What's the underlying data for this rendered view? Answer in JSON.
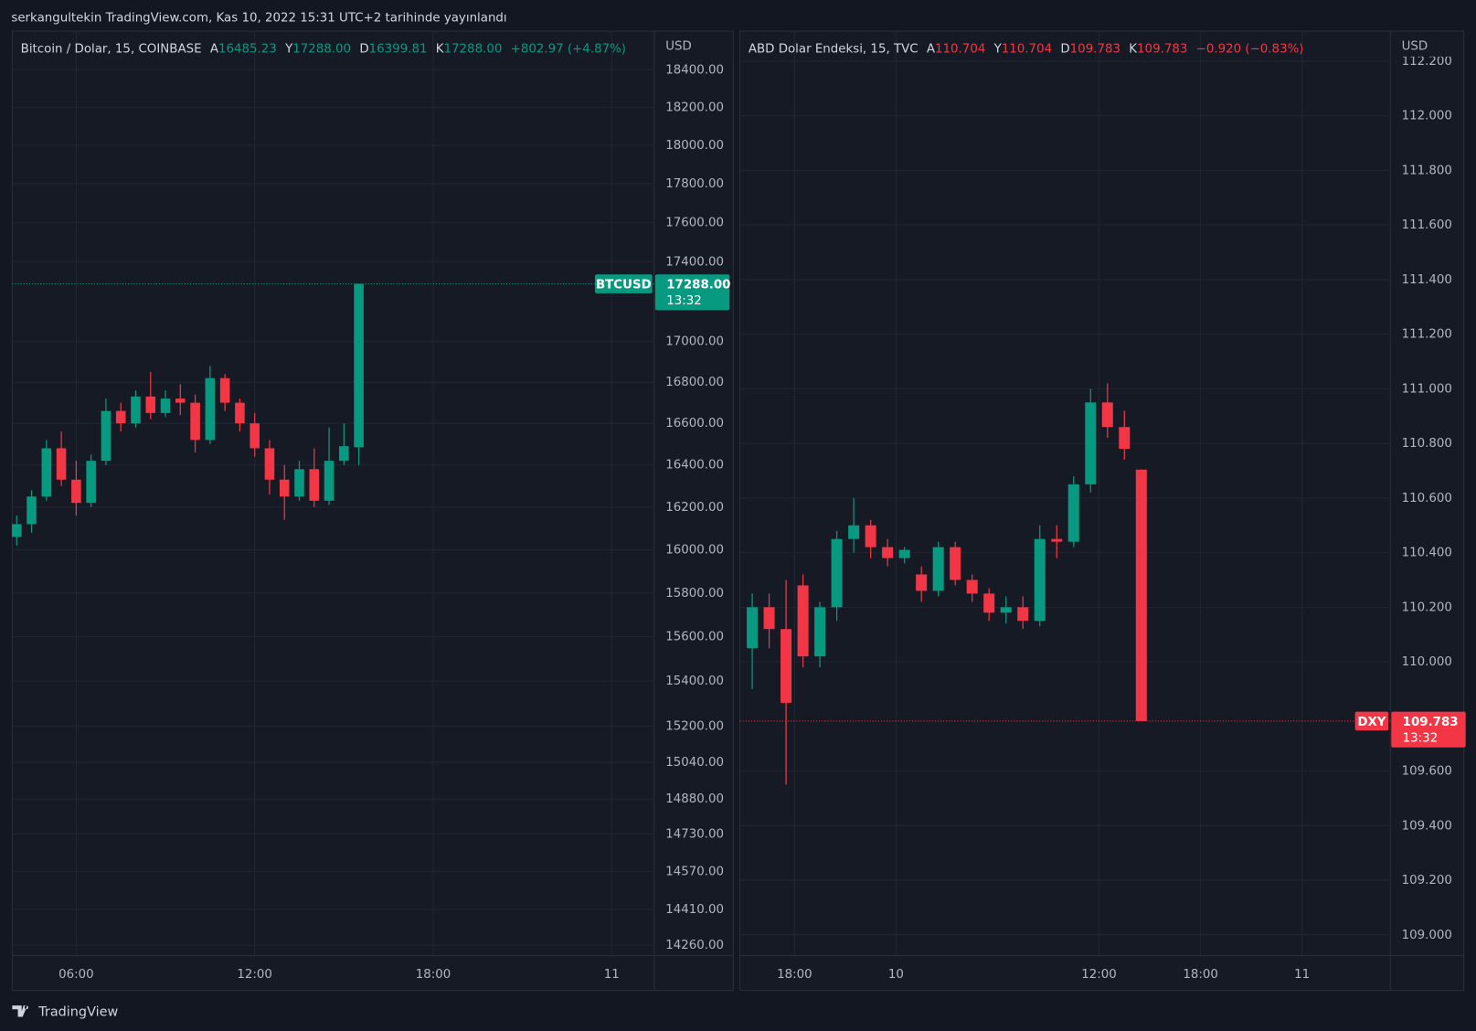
{
  "header": "serkangultekin TradingView.com, Kas 10, 2022 15:31 UTC+2 tarihinde yayınlandı",
  "brand": "TradingView",
  "chart_data": [
    {
      "type": "candlestick",
      "legend": {
        "name": "Bitcoin / Dolar, 15, COINBASE",
        "fields": [
          [
            "A",
            "16485.23"
          ],
          [
            "Y",
            "17288.00"
          ],
          [
            "D",
            "16399.81"
          ],
          [
            "K",
            "17288.00"
          ]
        ],
        "change": "+802.97 (+4.87%)"
      },
      "axis_unit": "USD",
      "symbol": "BTCUSD",
      "countdown": "13:32",
      "last_price": {
        "value": 17288,
        "label": "17288.00"
      },
      "up_color": "#089981",
      "down_color": "#f23645",
      "grid": true,
      "log_scale": true,
      "x": [
        4.0,
        4.5,
        5.0,
        5.5,
        6.0,
        6.5,
        7.0,
        7.5,
        8.0,
        8.5,
        9.0,
        9.5,
        10.0,
        10.5,
        11.0,
        11.5,
        12.0,
        12.5,
        13.0,
        13.5,
        14.0,
        14.5,
        15.0,
        15.5
      ],
      "open": [
        16060,
        16120,
        16250,
        16480,
        16330,
        16220,
        16420,
        16660,
        16600,
        16730,
        16650,
        16720,
        16700,
        16520,
        16820,
        16700,
        16600,
        16480,
        16330,
        16250,
        16380,
        16230,
        16420,
        16485.23
      ],
      "high": [
        16160,
        16280,
        16520,
        16560,
        16420,
        16450,
        16720,
        16700,
        16760,
        16850,
        16760,
        16790,
        16740,
        16880,
        16840,
        16720,
        16650,
        16520,
        16400,
        16420,
        16480,
        16580,
        16600,
        17288
      ],
      "low": [
        16020,
        16080,
        16230,
        16300,
        16160,
        16200,
        16400,
        16560,
        16580,
        16620,
        16630,
        16640,
        16460,
        16500,
        16660,
        16560,
        16440,
        16260,
        16140,
        16230,
        16200,
        16210,
        16400,
        16399.81
      ],
      "close": [
        16120,
        16250,
        16480,
        16330,
        16220,
        16420,
        16660,
        16600,
        16730,
        16650,
        16720,
        16700,
        16520,
        16820,
        16700,
        16600,
        16480,
        16330,
        16250,
        16380,
        16230,
        16420,
        16490,
        17288
      ],
      "xlim": [
        3.85,
        25.43
      ],
      "xticks": [
        {
          "value": 6,
          "label": "06:00"
        },
        {
          "value": 12,
          "label": "12:00"
        },
        {
          "value": 18,
          "label": "18:00"
        },
        {
          "value": 24,
          "label": "11"
        }
      ],
      "ylim": [
        14217,
        18608
      ],
      "yticks": [
        {
          "value": 18400,
          "label": "18400.00"
        },
        {
          "value": 18200,
          "label": "18200.00"
        },
        {
          "value": 18000,
          "label": "18000.00"
        },
        {
          "value": 17800,
          "label": "17800.00"
        },
        {
          "value": 17600,
          "label": "17600.00"
        },
        {
          "value": 17400,
          "label": "17400.00"
        },
        {
          "value": 17000,
          "label": "17000.00"
        },
        {
          "value": 16800,
          "label": "16800.00"
        },
        {
          "value": 16600,
          "label": "16600.00"
        },
        {
          "value": 16400,
          "label": "16400.00"
        },
        {
          "value": 16200,
          "label": "16200.00"
        },
        {
          "value": 16000,
          "label": "16000.00"
        },
        {
          "value": 15800,
          "label": "15800.00"
        },
        {
          "value": 15600,
          "label": "15600.00"
        },
        {
          "value": 15400,
          "label": "15400.00"
        },
        {
          "value": 15200,
          "label": "15200.00"
        },
        {
          "value": 15040,
          "label": "15040.00"
        },
        {
          "value": 14880,
          "label": "14880.00"
        },
        {
          "value": 14730,
          "label": "14730.00"
        },
        {
          "value": 14570,
          "label": "14570.00"
        },
        {
          "value": 14410,
          "label": "14410.00"
        },
        {
          "value": 14260,
          "label": "14260.00"
        }
      ]
    },
    {
      "type": "candlestick",
      "legend": {
        "name": "ABD Dolar Endeksi, 15, TVC",
        "fields": [
          [
            "A",
            "110.704"
          ],
          [
            "Y",
            "110.704"
          ],
          [
            "D",
            "109.783"
          ],
          [
            "K",
            "109.783"
          ]
        ],
        "change": "−0.920 (−0.83%)"
      },
      "axis_unit": "USD",
      "symbol": "DXY",
      "countdown": "13:32",
      "last_price": {
        "value": 109.783,
        "label": "109.783"
      },
      "up_color": "#089981",
      "down_color": "#f23645",
      "grid": true,
      "log_scale": false,
      "x": [
        15.5,
        16.5,
        17.5,
        18.5,
        19.5,
        20.5,
        21.5,
        22.5,
        23.5,
        24.5,
        25.5,
        26.5,
        27.5,
        28.5,
        29.5,
        30.5,
        31.5,
        32.5,
        33.5,
        34.5,
        35.5,
        36.5,
        37.5,
        38.5
      ],
      "open": [
        110.05,
        110.2,
        110.12,
        110.28,
        110.02,
        110.2,
        110.45,
        110.5,
        110.42,
        110.38,
        110.32,
        110.26,
        110.42,
        110.3,
        110.25,
        110.18,
        110.2,
        110.15,
        110.45,
        110.44,
        110.65,
        110.95,
        110.86,
        110.704
      ],
      "high": [
        110.25,
        110.25,
        110.3,
        110.32,
        110.22,
        110.48,
        110.6,
        110.52,
        110.45,
        110.42,
        110.35,
        110.44,
        110.44,
        110.32,
        110.27,
        110.24,
        110.24,
        110.5,
        110.5,
        110.68,
        111.0,
        111.02,
        110.92,
        110.704
      ],
      "low": [
        109.9,
        110.05,
        109.55,
        109.98,
        109.98,
        110.15,
        110.4,
        110.38,
        110.35,
        110.36,
        110.22,
        110.24,
        110.28,
        110.22,
        110.15,
        110.14,
        110.12,
        110.13,
        110.38,
        110.42,
        110.62,
        110.82,
        110.74,
        109.783
      ],
      "close": [
        110.2,
        110.12,
        109.85,
        110.02,
        110.2,
        110.45,
        110.5,
        110.42,
        110.38,
        110.41,
        110.26,
        110.42,
        110.3,
        110.25,
        110.18,
        110.2,
        110.15,
        110.45,
        110.44,
        110.65,
        110.95,
        110.86,
        110.78,
        109.783
      ],
      "xlim": [
        14.77,
        53.22
      ],
      "xticks": [
        {
          "value": 18,
          "label": "18:00"
        },
        {
          "value": 24,
          "label": "10"
        },
        {
          "value": 36,
          "label": "12:00"
        },
        {
          "value": 42,
          "label": "18:00"
        },
        {
          "value": 48,
          "label": "11"
        }
      ],
      "ylim": [
        108.924,
        112.31
      ],
      "yticks": [
        {
          "value": 112.2,
          "label": "112.200"
        },
        {
          "value": 112,
          "label": "112.000"
        },
        {
          "value": 111.8,
          "label": "111.800"
        },
        {
          "value": 111.6,
          "label": "111.600"
        },
        {
          "value": 111.4,
          "label": "111.400"
        },
        {
          "value": 111.2,
          "label": "111.200"
        },
        {
          "value": 111,
          "label": "111.000"
        },
        {
          "value": 110.8,
          "label": "110.800"
        },
        {
          "value": 110.6,
          "label": "110.600"
        },
        {
          "value": 110.4,
          "label": "110.400"
        },
        {
          "value": 110.2,
          "label": "110.200"
        },
        {
          "value": 110,
          "label": "110.000"
        },
        {
          "value": 109.6,
          "label": "109.600"
        },
        {
          "value": 109.4,
          "label": "109.400"
        },
        {
          "value": 109.2,
          "label": "109.200"
        },
        {
          "value": 109,
          "label": "109.000"
        }
      ]
    }
  ]
}
